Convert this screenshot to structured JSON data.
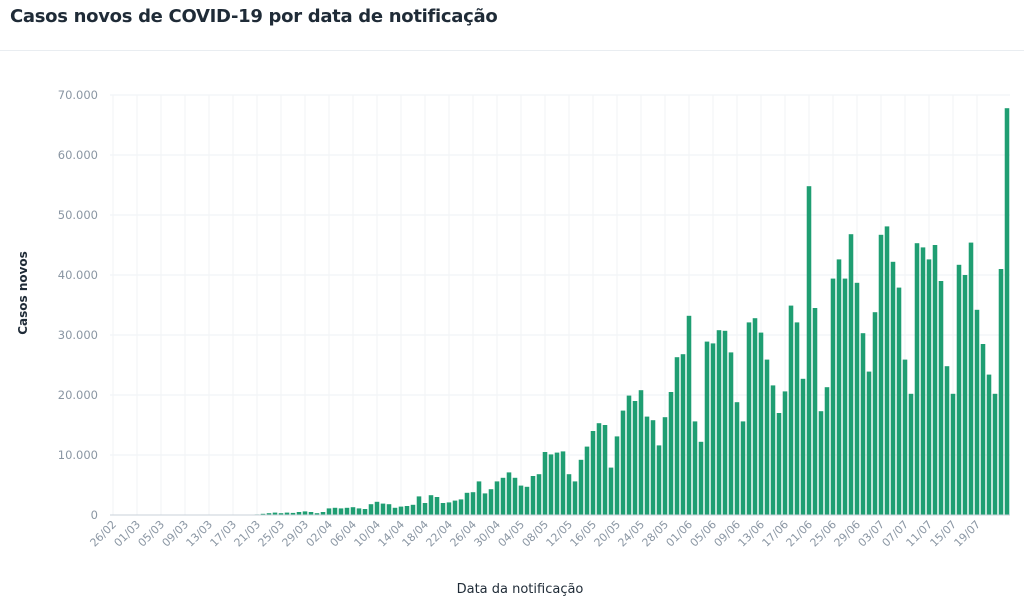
{
  "chart_data": {
    "type": "bar",
    "title": "Casos novos de COVID-19 por data de notificação",
    "xlabel": "Data da notificação",
    "ylabel": "Casos novos",
    "ylim": [
      0,
      70000
    ],
    "yticks": [
      "0",
      "10.000",
      "20.000",
      "30.000",
      "40.000",
      "50.000",
      "60.000",
      "70.000"
    ],
    "ytick_values": [
      0,
      10000,
      20000,
      30000,
      40000,
      50000,
      60000,
      70000
    ],
    "start_label": "26/02",
    "tick_labels": [
      "26/02",
      "01/03",
      "05/03",
      "09/03",
      "13/03",
      "17/03",
      "21/03",
      "25/03",
      "29/03",
      "02/04",
      "06/04",
      "10/04",
      "14/04",
      "18/04",
      "22/04",
      "26/04",
      "30/04",
      "04/05",
      "08/05",
      "12/05",
      "16/05",
      "20/05",
      "24/05",
      "28/05",
      "01/06",
      "05/06",
      "09/06",
      "13/06",
      "17/06",
      "21/06",
      "25/06",
      "29/06",
      "03/07",
      "07/07",
      "11/07",
      "15/07",
      "19/07"
    ],
    "bar_color": "#1f9e72",
    "grid": true,
    "values": [
      0,
      0,
      0,
      0,
      0,
      0,
      0,
      0,
      0,
      0,
      0,
      0,
      0,
      0,
      0,
      0,
      0,
      0,
      0,
      0,
      0,
      0,
      0,
      50,
      100,
      200,
      300,
      400,
      300,
      400,
      350,
      500,
      600,
      500,
      300,
      500,
      1100,
      1200,
      1100,
      1200,
      1300,
      1100,
      1000,
      1800,
      2200,
      1900,
      1800,
      1200,
      1400,
      1500,
      1700,
      3100,
      2000,
      3300,
      3000,
      2000,
      2100,
      2400,
      2600,
      3700,
      3800,
      5600,
      3600,
      4300,
      5600,
      6200,
      7100,
      6200,
      4900,
      4700,
      6500,
      6800,
      10500,
      10100,
      10400,
      10600,
      6800,
      5600,
      9200,
      11400,
      14000,
      15300,
      15000,
      7900,
      13100,
      17400,
      19900,
      19000,
      20800,
      16400,
      15800,
      11600,
      16300,
      20500,
      26300,
      26800,
      33200,
      15600,
      12200,
      28900,
      28600,
      30800,
      30700,
      27100,
      18800,
      15600,
      32100,
      32800,
      30400,
      25900,
      21600,
      17000,
      20600,
      34900,
      32100,
      22700,
      54800,
      34500,
      17300,
      21300,
      39400,
      42600,
      39400,
      46800,
      38700,
      30300,
      23900,
      33800,
      46700,
      48100,
      42200,
      37900,
      25900,
      20200,
      45300,
      44600,
      42600,
      45000,
      39000,
      24800,
      20200,
      41700,
      40000,
      45400,
      34200,
      28500,
      23400,
      20200,
      41000,
      67800
    ]
  }
}
